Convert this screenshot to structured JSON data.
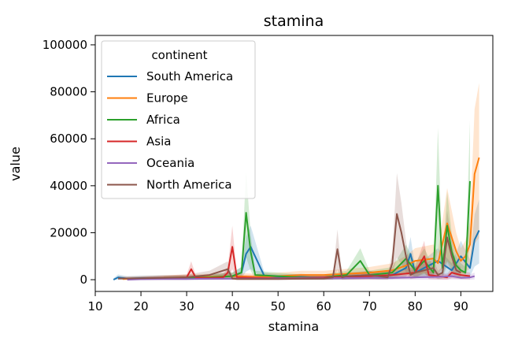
{
  "chart_data": {
    "type": "line",
    "title": "stamina",
    "xlabel": "stamina",
    "ylabel": "value",
    "xlim": [
      10,
      97
    ],
    "ylim": [
      -5000,
      104000
    ],
    "xticks": [
      10,
      20,
      30,
      40,
      50,
      60,
      70,
      80,
      90
    ],
    "yticks": [
      0,
      20000,
      40000,
      60000,
      80000,
      100000
    ],
    "grid": false,
    "legend": {
      "title": "continent",
      "placement": "upper-left"
    },
    "series": [
      {
        "name": "South America",
        "color": "#1f77b4",
        "x": [
          14,
          15,
          17,
          20,
          25,
          30,
          35,
          40,
          42,
          43,
          44,
          47,
          50,
          55,
          60,
          65,
          70,
          72,
          75,
          78,
          79,
          80,
          82,
          85,
          88,
          90,
          92,
          93,
          94
        ],
        "values": [
          0,
          1000,
          500,
          700,
          800,
          600,
          1000,
          1500,
          3000,
          11000,
          14000,
          1500,
          1000,
          1200,
          800,
          1000,
          2000,
          1500,
          2000,
          5000,
          11000,
          3000,
          5000,
          8000,
          4000,
          10000,
          5000,
          17000,
          21000
        ]
      },
      {
        "name": "Europe",
        "color": "#ff7f0e",
        "x": [
          16,
          18,
          20,
          25,
          30,
          35,
          40,
          45,
          50,
          55,
          60,
          65,
          70,
          75,
          78,
          80,
          84,
          85,
          87,
          88,
          89,
          90,
          91,
          92,
          93,
          94
        ],
        "values": [
          300,
          400,
          500,
          800,
          1000,
          1200,
          1500,
          1200,
          1500,
          2000,
          2000,
          2500,
          3000,
          4000,
          6000,
          8000,
          9000,
          7000,
          24000,
          18000,
          12000,
          8000,
          10000,
          15000,
          45000,
          52000
        ]
      },
      {
        "name": "Africa",
        "color": "#2ca02c",
        "x": [
          25,
          30,
          35,
          40,
          42,
          43,
          44,
          45,
          50,
          55,
          60,
          65,
          68,
          70,
          75,
          78,
          80,
          82,
          84,
          85,
          86,
          87,
          88,
          89,
          90,
          91,
          92
        ],
        "values": [
          500,
          800,
          1000,
          1500,
          3000,
          28500,
          12000,
          2000,
          1500,
          1000,
          1000,
          2000,
          8000,
          2000,
          3000,
          9000,
          4000,
          8000,
          3000,
          40000,
          5000,
          23000,
          12000,
          6000,
          4000,
          3000,
          42000
        ]
      },
      {
        "name": "Asia",
        "color": "#d62728",
        "x": [
          20,
          25,
          30,
          31,
          32,
          35,
          38,
          39,
          40,
          41,
          45,
          50,
          55,
          60,
          65,
          70,
          75,
          80,
          82,
          83,
          85,
          87,
          88,
          90,
          92
        ],
        "values": [
          300,
          600,
          1000,
          4500,
          800,
          700,
          1000,
          3000,
          14000,
          1000,
          800,
          600,
          800,
          1000,
          1200,
          1500,
          2000,
          3000,
          10000,
          2000,
          1500,
          1000,
          3000,
          2000,
          1500
        ]
      },
      {
        "name": "Oceania",
        "color": "#9467bd",
        "x": [
          17,
          20,
          25,
          30,
          35,
          40,
          45,
          50,
          55,
          60,
          65,
          70,
          75,
          80,
          85,
          88,
          90,
          92,
          93
        ],
        "values": [
          0,
          200,
          300,
          300,
          400,
          400,
          500,
          500,
          600,
          600,
          700,
          800,
          800,
          1000,
          1200,
          1500,
          800,
          1000,
          1500
        ]
      },
      {
        "name": "North America",
        "color": "#8c564b",
        "x": [
          15,
          20,
          25,
          30,
          35,
          39,
          40,
          41,
          45,
          50,
          55,
          60,
          62,
          63,
          64,
          65,
          70,
          74,
          75,
          76,
          77,
          78,
          79,
          80,
          84,
          85,
          86,
          87,
          88,
          89,
          90
        ],
        "values": [
          500,
          600,
          800,
          1000,
          2000,
          4500,
          500,
          300,
          300,
          300,
          400,
          500,
          1000,
          13000,
          1000,
          1500,
          2000,
          1000,
          7000,
          28000,
          20000,
          10000,
          2000,
          3000,
          5000,
          2000,
          3000,
          18000,
          10000,
          4000,
          3000
        ]
      }
    ]
  }
}
